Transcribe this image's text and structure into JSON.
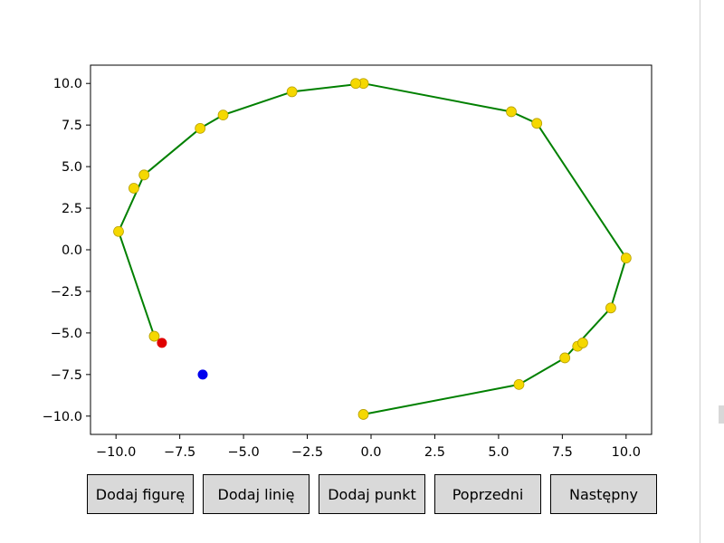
{
  "chart_data": {
    "type": "line",
    "title": "",
    "xlabel": "",
    "ylabel": "",
    "xlim": [
      -11.0,
      11.0
    ],
    "ylim": [
      -11.1,
      11.1
    ],
    "xticks": [
      -10.0,
      -7.5,
      -5.0,
      -2.5,
      0.0,
      2.5,
      5.0,
      7.5,
      10.0
    ],
    "xtick_labels": [
      "−10.0",
      "−7.5",
      "−5.0",
      "−2.5",
      "0.0",
      "2.5",
      "5.0",
      "7.5",
      "10.0"
    ],
    "yticks": [
      10.0,
      7.5,
      5.0,
      2.5,
      0.0,
      -2.5,
      -5.0,
      -7.5,
      -10.0
    ],
    "ytick_labels": [
      "10.0",
      "7.5",
      "5.0",
      "2.5",
      "0.0",
      "−2.5",
      "−5.0",
      "−7.5",
      "−10.0"
    ],
    "grid": false,
    "polyline": {
      "color": "#008000",
      "x": [
        -0.3,
        5.8,
        7.6,
        9.4,
        10.0,
        6.5,
        5.5,
        -0.3,
        -3.1,
        -5.8,
        -6.7,
        -8.9,
        -9.9,
        -8.5
      ],
      "y": [
        -9.9,
        -8.1,
        -6.5,
        -3.5,
        -0.5,
        7.6,
        8.3,
        10.0,
        9.5,
        8.1,
        7.3,
        4.5,
        1.1,
        -5.2
      ]
    },
    "markers": {
      "color": "#f5d800",
      "edge_color": "#b8a000",
      "x": [
        -0.3,
        5.8,
        7.6,
        8.1,
        8.3,
        9.4,
        10.0,
        6.5,
        5.5,
        -0.3,
        -0.6,
        -3.1,
        -5.8,
        -6.7,
        -8.9,
        -9.3,
        -9.9,
        -8.5
      ],
      "y": [
        -9.9,
        -8.1,
        -6.5,
        -5.8,
        -5.6,
        -3.5,
        -0.5,
        7.6,
        8.3,
        10.0,
        10.0,
        9.5,
        8.1,
        7.3,
        4.5,
        3.7,
        1.1,
        -5.2
      ]
    },
    "highlight_points": [
      {
        "x": -8.2,
        "y": -5.6,
        "color": "#e00000"
      },
      {
        "x": -6.6,
        "y": -7.5,
        "color": "#0000ee"
      }
    ]
  },
  "buttons": [
    {
      "label": "Dodaj figurę"
    },
    {
      "label": "Dodaj linię"
    },
    {
      "label": "Dodaj punkt"
    },
    {
      "label": "Poprzedni"
    },
    {
      "label": "Następny"
    }
  ]
}
